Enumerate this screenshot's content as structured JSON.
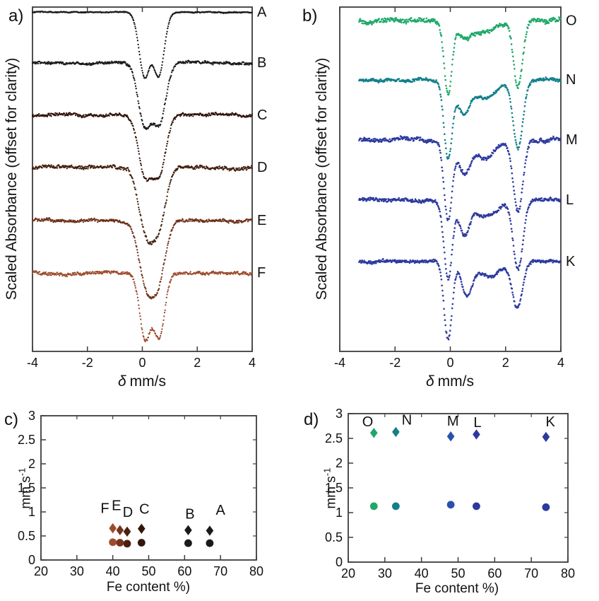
{
  "figure": {
    "background": "#ffffff"
  },
  "chart_data": [
    {
      "id": "a",
      "type": "scatter",
      "panel_letter": "a)",
      "ylabel": "Scaled Absorbance (offset for clarity)",
      "xlabel_symbol": "δ",
      "xlabel_unit": "mm/s",
      "xlim": [
        -4,
        4
      ],
      "xticks": [
        -4,
        -2,
        0,
        2,
        4
      ],
      "axis_color": "#3c3c3c",
      "curves": [
        {
          "label": "A",
          "color": "#1a1a1a",
          "baseline": 0.015,
          "noise": 0.0012,
          "x_start": -4,
          "x_end": 4,
          "dips": [
            {
              "center": 0.08,
              "depth": 0.185,
              "width": 0.28
            },
            {
              "center": 0.6,
              "depth": 0.182,
              "width": 0.28
            }
          ]
        },
        {
          "label": "B",
          "color": "#1b1b1b",
          "baseline": 0.162,
          "noise": 0.003,
          "x_start": -4,
          "x_end": 4,
          "dips": [
            {
              "center": 0.08,
              "depth": 0.175,
              "width": 0.33
            },
            {
              "center": 0.62,
              "depth": 0.17,
              "width": 0.33
            }
          ]
        },
        {
          "label": "C",
          "color": "#30140a",
          "baseline": 0.314,
          "noise": 0.0035,
          "x_start": -4,
          "x_end": 4,
          "dips": [
            {
              "center": 0.1,
              "depth": 0.17,
              "width": 0.34
            },
            {
              "center": 0.62,
              "depth": 0.165,
              "width": 0.34
            }
          ]
        },
        {
          "label": "D",
          "color": "#42200f",
          "baseline": 0.466,
          "noise": 0.004,
          "x_start": -4,
          "x_end": 4,
          "dips": [
            {
              "center": 0.12,
              "depth": 0.16,
              "width": 0.38
            },
            {
              "center": 0.58,
              "depth": 0.16,
              "width": 0.38
            }
          ]
        },
        {
          "label": "E",
          "color": "#6f311b",
          "baseline": 0.62,
          "noise": 0.0035,
          "x_start": -4,
          "x_end": 4,
          "dips": [
            {
              "center": 0.12,
              "depth": 0.162,
              "width": 0.38
            },
            {
              "center": 0.58,
              "depth": 0.162,
              "width": 0.38
            }
          ]
        },
        {
          "label": "F",
          "color": "#9c4c2d",
          "baseline": 0.772,
          "noise": 0.0035,
          "x_start": -4,
          "x_end": 4,
          "dips": [
            {
              "center": 0.1,
              "depth": 0.19,
              "width": 0.28
            },
            {
              "center": 0.62,
              "depth": 0.183,
              "width": 0.28
            }
          ]
        }
      ]
    },
    {
      "id": "b",
      "type": "scatter",
      "panel_letter": "b)",
      "ylabel": "Scaled Absorbance (offset for clarity)",
      "xlabel_symbol": "δ",
      "xlabel_unit": "mm/s",
      "xlim": [
        -4,
        4
      ],
      "xticks": [
        -4,
        -2,
        0,
        2,
        4
      ],
      "axis_color": "#3c3c3c",
      "curves": [
        {
          "label": "O",
          "color": "#1ea86a",
          "baseline": 0.04,
          "noise": 0.0055,
          "x_start": -3.3,
          "x_end": 4,
          "dips": [
            {
              "center": -0.08,
              "depth": 0.215,
              "width": 0.2
            },
            {
              "center": 0.5,
              "depth": 0.05,
              "width": 0.32
            },
            {
              "center": 1.3,
              "depth": 0.04,
              "width": 0.55
            },
            {
              "center": 2.45,
              "depth": 0.19,
              "width": 0.24
            }
          ]
        },
        {
          "label": "N",
          "color": "#137f8b",
          "baseline": 0.212,
          "noise": 0.0035,
          "x_start": -3.3,
          "x_end": 4,
          "dips": [
            {
              "center": -0.08,
              "depth": 0.225,
              "width": 0.21
            },
            {
              "center": 0.48,
              "depth": 0.09,
              "width": 0.3
            },
            {
              "center": 1.25,
              "depth": 0.05,
              "width": 0.55
            },
            {
              "center": 2.45,
              "depth": 0.2,
              "width": 0.25
            }
          ]
        },
        {
          "label": "M",
          "color": "#2c3a9e",
          "baseline": 0.386,
          "noise": 0.0045,
          "x_start": -3.3,
          "x_end": 4,
          "dips": [
            {
              "center": -0.08,
              "depth": 0.23,
              "width": 0.21
            },
            {
              "center": 0.5,
              "depth": 0.085,
              "width": 0.3
            },
            {
              "center": 1.25,
              "depth": 0.05,
              "width": 0.55
            },
            {
              "center": 2.45,
              "depth": 0.205,
              "width": 0.25
            }
          ]
        },
        {
          "label": "L",
          "color": "#2c3a9e",
          "baseline": 0.561,
          "noise": 0.004,
          "x_start": -3.3,
          "x_end": 4,
          "dips": [
            {
              "center": -0.08,
              "depth": 0.225,
              "width": 0.21
            },
            {
              "center": 0.52,
              "depth": 0.095,
              "width": 0.28
            },
            {
              "center": 1.3,
              "depth": 0.05,
              "width": 0.55
            },
            {
              "center": 2.45,
              "depth": 0.2,
              "width": 0.25
            }
          ]
        },
        {
          "label": "K",
          "color": "#2c3a9e",
          "baseline": 0.739,
          "noise": 0.0035,
          "x_start": -3.3,
          "x_end": 4,
          "dips": [
            {
              "center": -0.08,
              "depth": 0.228,
              "width": 0.21
            },
            {
              "center": 0.6,
              "depth": 0.1,
              "width": 0.26
            },
            {
              "center": 1.4,
              "depth": 0.045,
              "width": 0.55
            },
            {
              "center": 2.42,
              "depth": 0.135,
              "width": 0.26
            }
          ]
        }
      ]
    },
    {
      "id": "c",
      "type": "scatter",
      "panel_letter": "c)",
      "ylabel_base": "mm s",
      "ylabel_sup": "-1",
      "xlabel": "Fe content %)",
      "xlim": [
        20,
        80
      ],
      "ylim": [
        0,
        3
      ],
      "xticks": [
        20,
        30,
        40,
        50,
        60,
        70,
        80
      ],
      "yticks": [
        0,
        0.5,
        1,
        1.5,
        2,
        2.5,
        3
      ],
      "axis_color": "#3c3c3c",
      "points": [
        {
          "label": "A",
          "fe": 67,
          "diamond": 0.61,
          "circle": 0.35,
          "color": "#1a1a1a",
          "label_fe": 70.0,
          "label_val": 0.94
        },
        {
          "label": "B",
          "fe": 61,
          "diamond": 0.62,
          "circle": 0.35,
          "color": "#1a1a1a",
          "label_fe": 61.5,
          "label_val": 0.86
        },
        {
          "label": "C",
          "fe": 48,
          "diamond": 0.65,
          "circle": 0.36,
          "color": "#33150b",
          "label_fe": 48.8,
          "label_val": 0.96
        },
        {
          "label": "D",
          "fe": 44,
          "diamond": 0.59,
          "circle": 0.34,
          "color": "#4a2010",
          "label_fe": 44.2,
          "label_val": 0.9
        },
        {
          "label": "E",
          "fe": 42,
          "diamond": 0.62,
          "circle": 0.36,
          "color": "#74331c",
          "label_fe": 41.0,
          "label_val": 1.04
        },
        {
          "label": "F",
          "fe": 40,
          "diamond": 0.66,
          "circle": 0.37,
          "color": "#9c4c2d",
          "label_fe": 37.8,
          "label_val": 0.98
        }
      ]
    },
    {
      "id": "d",
      "type": "scatter",
      "panel_letter": "d)",
      "ylabel_base": "mm s",
      "ylabel_sup": "-1",
      "xlabel": "Fe content %)",
      "xlim": [
        20,
        80
      ],
      "ylim": [
        0,
        3
      ],
      "xticks": [
        20,
        30,
        40,
        50,
        60,
        70,
        80
      ],
      "yticks": [
        0,
        0.5,
        1,
        1.5,
        2,
        2.5,
        3
      ],
      "axis_color": "#3c3c3c",
      "points": [
        {
          "label": "K",
          "fe": 74,
          "diamond": 2.53,
          "circle": 1.11,
          "color": "#2c3a9e",
          "label_fe": 75.2,
          "label_val": 2.74
        },
        {
          "label": "L",
          "fe": 55,
          "diamond": 2.58,
          "circle": 1.13,
          "color": "#2c3a9e",
          "label_fe": 55.3,
          "label_val": 2.73
        },
        {
          "label": "M",
          "fe": 48,
          "diamond": 2.54,
          "circle": 1.16,
          "color": "#2b4fae",
          "label_fe": 48.6,
          "label_val": 2.76
        },
        {
          "label": "N",
          "fe": 33,
          "diamond": 2.63,
          "circle": 1.13,
          "color": "#137f8b",
          "label_fe": 36.0,
          "label_val": 2.78
        },
        {
          "label": "O",
          "fe": 27,
          "diamond": 2.61,
          "circle": 1.13,
          "color": "#1ea86a",
          "label_fe": 25.3,
          "label_val": 2.74
        }
      ]
    }
  ]
}
